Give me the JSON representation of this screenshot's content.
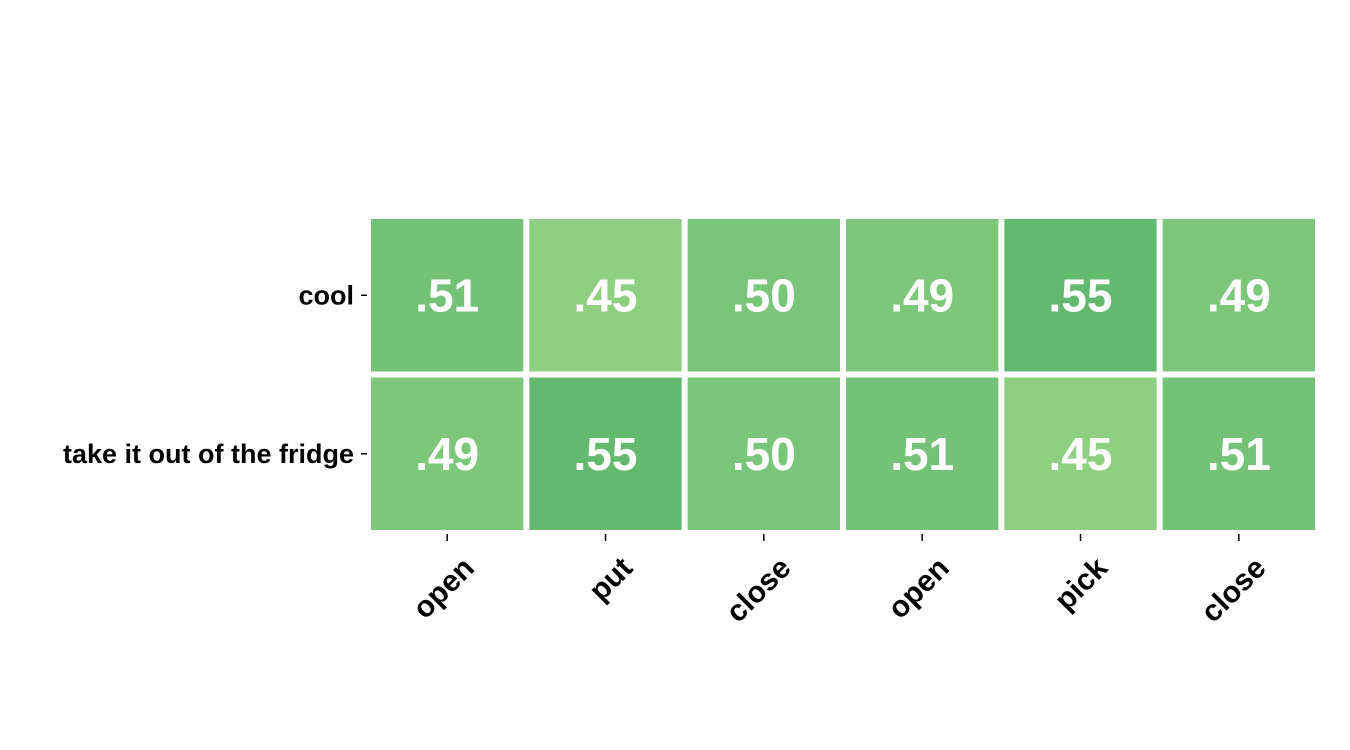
{
  "chart_data": {
    "type": "heatmap",
    "title": "",
    "xlabel": "",
    "ylabel": "",
    "rows": [
      "cool",
      "take it out of the fridge"
    ],
    "columns": [
      "open",
      "put",
      "close",
      "open",
      "pick",
      "close"
    ],
    "values": [
      [
        0.51,
        0.45,
        0.5,
        0.49,
        0.55,
        0.49
      ],
      [
        0.49,
        0.55,
        0.5,
        0.51,
        0.45,
        0.51
      ]
    ],
    "cell_labels": [
      [
        ".51",
        ".45",
        ".50",
        ".49",
        ".55",
        ".49"
      ],
      [
        ".49",
        ".55",
        ".50",
        ".51",
        ".45",
        ".51"
      ]
    ],
    "color_scale": {
      "min_value": 0.45,
      "max_value": 0.55,
      "min_color": "#8ecf82",
      "max_color": "#63ba6f"
    },
    "grid": false,
    "legend": "none"
  }
}
